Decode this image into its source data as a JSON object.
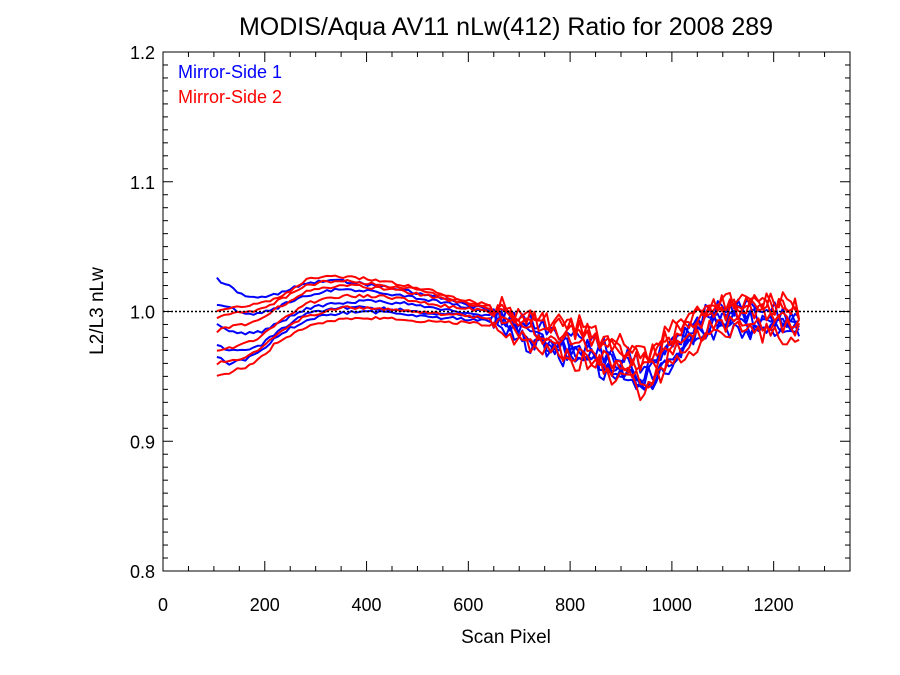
{
  "chart_data": {
    "type": "line",
    "title": "MODIS/Aqua AV11 nLw(412) Ratio for 2008 289",
    "xlabel": "Scan Pixel",
    "ylabel": "L2/L3 nLw",
    "xlim": [
      0,
      1350
    ],
    "ylim": [
      0.8,
      1.2
    ],
    "xticks": [
      0,
      200,
      400,
      600,
      800,
      1000,
      1200
    ],
    "yticks": [
      0.8,
      0.9,
      1.0,
      1.1,
      1.2
    ],
    "xtick_labels": [
      "0",
      "200",
      "400",
      "600",
      "800",
      "1000",
      "1200"
    ],
    "ytick_labels": [
      "0.8",
      "0.9",
      "1.0",
      "1.1",
      "1.2"
    ],
    "reference_line": {
      "y": 1.0,
      "style": "dotted"
    },
    "legend": {
      "placement": "top-left",
      "entries": [
        {
          "label": "Mirror-Side 1",
          "color": "#0000ff"
        },
        {
          "label": "Mirror-Side 2",
          "color": "#ff0000"
        }
      ]
    },
    "envelope_x": [
      106,
      130,
      160,
      190,
      220,
      250,
      280,
      320,
      360,
      400,
      440,
      480,
      520,
      560,
      600,
      640,
      670,
      700,
      730,
      760,
      790,
      820,
      850,
      880,
      900,
      920,
      940,
      960,
      990,
      1020,
      1050,
      1080,
      1110,
      1140,
      1170,
      1200,
      1230,
      1250
    ],
    "envelope_low": [
      0.955,
      0.953,
      0.957,
      0.963,
      0.975,
      0.982,
      0.988,
      0.992,
      0.995,
      0.995,
      0.995,
      0.994,
      0.992,
      0.992,
      0.991,
      0.99,
      0.988,
      0.978,
      0.972,
      0.968,
      0.962,
      0.962,
      0.957,
      0.948,
      0.947,
      0.945,
      0.937,
      0.945,
      0.955,
      0.967,
      0.975,
      0.983,
      0.983,
      0.985,
      0.984,
      0.983,
      0.982,
      0.98
    ],
    "envelope_high": [
      1.025,
      1.02,
      1.012,
      1.01,
      1.013,
      1.018,
      1.024,
      1.027,
      1.027,
      1.025,
      1.023,
      1.02,
      1.017,
      1.012,
      1.008,
      1.005,
      1.004,
      1.0,
      0.998,
      0.993,
      0.99,
      0.99,
      0.983,
      0.978,
      0.975,
      0.973,
      0.965,
      0.97,
      0.983,
      0.993,
      1.003,
      1.01,
      1.01,
      1.009,
      1.01,
      1.008,
      1.007,
      1.005
    ],
    "series": [
      {
        "color": "#0000ff",
        "values": [
          1.025,
          1.02,
          1.012,
          1.01,
          1.013,
          1.018,
          1.022,
          1.024,
          1.023,
          1.021,
          1.019,
          1.016,
          1.013,
          1.009,
          1.005,
          1.001,
          0.998,
          0.993,
          0.99,
          0.985,
          0.981,
          0.98,
          0.975,
          0.97,
          0.967,
          0.966,
          0.958,
          0.963,
          0.975,
          0.985,
          0.994,
          1.001,
          1.002,
          1.001,
          1.002,
          1.0,
          0.999,
          0.997
        ]
      },
      {
        "color": "#0000ff",
        "values": [
          0.99,
          0.985,
          0.983,
          0.984,
          0.99,
          0.996,
          1.002,
          1.005,
          1.007,
          1.008,
          1.007,
          1.006,
          1.003,
          1.001,
          0.999,
          0.997,
          0.994,
          0.985,
          0.98,
          0.975,
          0.97,
          0.969,
          0.964,
          0.957,
          0.955,
          0.953,
          0.944,
          0.951,
          0.963,
          0.975,
          0.984,
          0.992,
          0.993,
          0.993,
          0.993,
          0.991,
          0.99,
          0.988
        ]
      },
      {
        "color": "#0000ff",
        "values": [
          0.965,
          0.96,
          0.963,
          0.968,
          0.979,
          0.987,
          0.993,
          0.997,
          0.999,
          1.0,
          0.999,
          0.998,
          0.996,
          0.995,
          0.994,
          0.993,
          0.99,
          0.98,
          0.974,
          0.97,
          0.964,
          0.964,
          0.959,
          0.95,
          0.949,
          0.947,
          0.938,
          0.946,
          0.957,
          0.969,
          0.977,
          0.985,
          0.986,
          0.987,
          0.986,
          0.985,
          0.984,
          0.982
        ]
      },
      {
        "color": "#0000ff",
        "values": [
          1.005,
          1.003,
          0.998,
          0.998,
          1.002,
          1.008,
          1.012,
          1.016,
          1.017,
          1.016,
          1.014,
          1.012,
          1.009,
          1.006,
          1.003,
          1.0,
          0.997,
          0.99,
          0.985,
          0.98,
          0.975,
          0.974,
          0.97,
          0.963,
          0.961,
          0.959,
          0.95,
          0.956,
          0.969,
          0.98,
          0.989,
          0.996,
          0.997,
          0.997,
          0.997,
          0.995,
          0.994,
          0.992
        ]
      },
      {
        "color": "#0000ff",
        "values": [
          0.975,
          0.97,
          0.97,
          0.973,
          0.983,
          0.991,
          0.998,
          1.001,
          1.003,
          1.003,
          1.002,
          1.001,
          0.999,
          0.998,
          0.996,
          0.995,
          0.992,
          0.983,
          0.977,
          0.972,
          0.967,
          0.966,
          0.961,
          0.953,
          0.952,
          0.95,
          0.941,
          0.948,
          0.96,
          0.972,
          0.98,
          0.988,
          0.989,
          0.99,
          0.989,
          0.988,
          0.987,
          0.985
        ]
      },
      {
        "color": "#ff0000",
        "values": [
          1.0,
          1.003,
          1.004,
          1.006,
          1.01,
          1.016,
          1.024,
          1.027,
          1.027,
          1.025,
          1.023,
          1.02,
          1.017,
          1.012,
          1.008,
          1.005,
          1.004,
          1.0,
          0.998,
          0.993,
          0.99,
          0.99,
          0.983,
          0.978,
          0.975,
          0.973,
          0.965,
          0.97,
          0.983,
          0.993,
          1.003,
          1.01,
          1.01,
          1.009,
          1.01,
          1.008,
          1.007,
          1.005
        ]
      },
      {
        "color": "#ff0000",
        "values": [
          0.95,
          0.953,
          0.957,
          0.963,
          0.975,
          0.982,
          0.988,
          0.992,
          0.995,
          0.995,
          0.995,
          0.994,
          0.992,
          0.992,
          0.991,
          0.99,
          0.988,
          0.978,
          0.972,
          0.968,
          0.962,
          0.962,
          0.957,
          0.948,
          0.947,
          0.945,
          0.937,
          0.945,
          0.955,
          0.967,
          0.975,
          0.983,
          0.983,
          0.985,
          0.984,
          0.983,
          0.982,
          0.98
        ]
      },
      {
        "color": "#ff0000",
        "values": [
          0.97,
          0.972,
          0.975,
          0.98,
          0.99,
          0.998,
          1.006,
          1.01,
          1.012,
          1.012,
          1.011,
          1.009,
          1.006,
          1.004,
          1.002,
          1.0,
          0.997,
          0.99,
          0.986,
          0.981,
          0.977,
          0.976,
          0.97,
          0.963,
          0.961,
          0.959,
          0.951,
          0.958,
          0.97,
          0.981,
          0.99,
          0.998,
          0.999,
          0.998,
          0.999,
          0.997,
          0.996,
          0.994
        ]
      },
      {
        "color": "#ff0000",
        "values": [
          0.985,
          0.988,
          0.99,
          0.994,
          1.002,
          1.008,
          1.015,
          1.018,
          1.02,
          1.019,
          1.017,
          1.015,
          1.012,
          1.009,
          1.006,
          1.003,
          1.001,
          0.995,
          0.992,
          0.987,
          0.983,
          0.983,
          0.977,
          0.97,
          0.968,
          0.966,
          0.958,
          0.964,
          0.977,
          0.987,
          0.996,
          1.004,
          1.005,
          1.004,
          1.005,
          1.003,
          1.002,
          1.0
        ]
      },
      {
        "color": "#ff0000",
        "values": [
          0.96,
          0.962,
          0.965,
          0.97,
          0.981,
          0.989,
          0.996,
          1.0,
          1.003,
          1.003,
          1.002,
          1.001,
          0.999,
          0.998,
          0.996,
          0.995,
          0.993,
          0.984,
          0.979,
          0.974,
          0.969,
          0.968,
          0.963,
          0.955,
          0.954,
          0.952,
          0.944,
          0.951,
          0.962,
          0.974,
          0.982,
          0.99,
          0.991,
          0.991,
          0.991,
          0.99,
          0.989,
          0.987
        ]
      },
      {
        "color": "#ff0000",
        "values": [
          0.995,
          0.998,
          0.999,
          1.002,
          1.007,
          1.013,
          1.02,
          1.023,
          1.024,
          1.022,
          1.02,
          1.018,
          1.015,
          1.011,
          1.007,
          1.004,
          1.002,
          0.997,
          0.995,
          0.99,
          0.986,
          0.986,
          0.98,
          0.974,
          0.971,
          0.969,
          0.961,
          0.967,
          0.98,
          0.99,
          0.999,
          1.007,
          1.008,
          1.006,
          1.007,
          1.005,
          1.004,
          1.002
        ]
      }
    ]
  }
}
